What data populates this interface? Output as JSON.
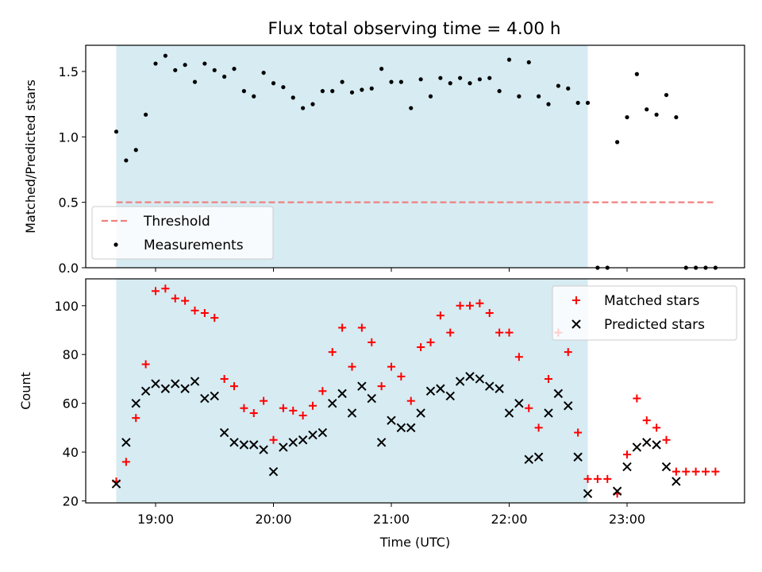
{
  "title": "Flux total observing time = 4.00 h",
  "colors": {
    "shade": "#add8e6",
    "threshold": "#f08080",
    "matched": "#ff0000",
    "predicted": "#000000"
  },
  "chart_data": [
    {
      "type": "scatter",
      "ylabel": "Matched/Predicted stars",
      "ylim": [
        0,
        1.7
      ],
      "yticks": [
        "0.0",
        "0.5",
        "1.0",
        "1.5"
      ],
      "grid": false,
      "legend": "lower-left",
      "shaded_interval": [
        "18:40",
        "22:40"
      ],
      "threshold": {
        "name": "Threshold",
        "value": 0.5,
        "x_range": [
          "18:40",
          "23:45"
        ]
      },
      "series": [
        {
          "name": "Measurements",
          "x": [
            "18:40",
            "18:45",
            "18:50",
            "18:55",
            "19:00",
            "19:05",
            "19:10",
            "19:15",
            "19:20",
            "19:25",
            "19:30",
            "19:35",
            "19:40",
            "19:45",
            "19:50",
            "19:55",
            "20:00",
            "20:05",
            "20:10",
            "20:15",
            "20:20",
            "20:25",
            "20:30",
            "20:35",
            "20:40",
            "20:45",
            "20:50",
            "20:55",
            "21:00",
            "21:05",
            "21:10",
            "21:15",
            "21:20",
            "21:25",
            "21:30",
            "21:35",
            "21:40",
            "21:45",
            "21:50",
            "21:55",
            "22:00",
            "22:05",
            "22:10",
            "22:15",
            "22:20",
            "22:25",
            "22:30",
            "22:35",
            "22:40",
            "22:45",
            "22:50",
            "22:55",
            "23:00",
            "23:05",
            "23:10",
            "23:15",
            "23:20",
            "23:25",
            "23:30",
            "23:35",
            "23:40",
            "23:45"
          ],
          "y": [
            1.04,
            0.82,
            0.9,
            1.17,
            1.56,
            1.62,
            1.51,
            1.55,
            1.42,
            1.56,
            1.51,
            1.46,
            1.52,
            1.35,
            1.31,
            1.49,
            1.41,
            1.38,
            1.3,
            1.22,
            1.25,
            1.35,
            1.35,
            1.42,
            1.34,
            1.36,
            1.37,
            1.52,
            1.42,
            1.42,
            1.22,
            1.44,
            1.31,
            1.45,
            1.41,
            1.45,
            1.41,
            1.44,
            1.45,
            1.35,
            1.59,
            1.31,
            1.57,
            1.31,
            1.25,
            1.39,
            1.37,
            1.26,
            1.26,
            0,
            0,
            0.96,
            1.15,
            1.48,
            1.21,
            1.17,
            1.32,
            1.15,
            0,
            0,
            0,
            0
          ]
        }
      ]
    },
    {
      "type": "scatter",
      "xlabel": "Time (UTC)",
      "ylabel": "Count",
      "ylim": [
        19.2,
        111
      ],
      "yticks": [
        "20",
        "40",
        "60",
        "80",
        "100"
      ],
      "xticks": [
        "19:00",
        "20:00",
        "21:00",
        "22:00",
        "23:00"
      ],
      "grid": false,
      "legend": "upper-right",
      "shaded_interval": [
        "18:40",
        "22:40"
      ],
      "series": [
        {
          "name": "Matched stars",
          "x": [
            "18:40",
            "18:45",
            "18:50",
            "18:55",
            "19:00",
            "19:05",
            "19:10",
            "19:15",
            "19:20",
            "19:25",
            "19:30",
            "19:35",
            "19:40",
            "19:45",
            "19:50",
            "19:55",
            "20:00",
            "20:05",
            "20:10",
            "20:15",
            "20:20",
            "20:25",
            "20:30",
            "20:35",
            "20:40",
            "20:45",
            "20:50",
            "20:55",
            "21:00",
            "21:05",
            "21:10",
            "21:15",
            "21:20",
            "21:25",
            "21:30",
            "21:35",
            "21:40",
            "21:45",
            "21:50",
            "21:55",
            "22:00",
            "22:05",
            "22:10",
            "22:15",
            "22:20",
            "22:25",
            "22:30",
            "22:35",
            "22:40",
            "22:45",
            "22:50",
            "22:55",
            "23:00",
            "23:05",
            "23:10",
            "23:15",
            "23:20",
            "23:25",
            "23:30",
            "23:35",
            "23:40",
            "23:45"
          ],
          "y": [
            28,
            36,
            54,
            76,
            106,
            107,
            103,
            102,
            98,
            97,
            95,
            70,
            67,
            58,
            56,
            61,
            45,
            58,
            57,
            55,
            59,
            65,
            81,
            91,
            75,
            91,
            85,
            67,
            75,
            71,
            61,
            83,
            85,
            96,
            89,
            100,
            100,
            101,
            97,
            89,
            89,
            79,
            58,
            50,
            70,
            89,
            81,
            48,
            29,
            29,
            29,
            23,
            39,
            62,
            53,
            50,
            45,
            32,
            32,
            32,
            32,
            32
          ]
        },
        {
          "name": "Predicted stars",
          "x": [
            "18:40",
            "18:45",
            "18:50",
            "18:55",
            "19:00",
            "19:05",
            "19:10",
            "19:15",
            "19:20",
            "19:25",
            "19:30",
            "19:35",
            "19:40",
            "19:45",
            "19:50",
            "19:55",
            "20:00",
            "20:05",
            "20:10",
            "20:15",
            "20:20",
            "20:25",
            "20:30",
            "20:35",
            "20:40",
            "20:45",
            "20:50",
            "20:55",
            "21:00",
            "21:05",
            "21:10",
            "21:15",
            "21:20",
            "21:25",
            "21:30",
            "21:35",
            "21:40",
            "21:45",
            "21:50",
            "21:55",
            "22:00",
            "22:05",
            "22:10",
            "22:15",
            "22:20",
            "22:25",
            "22:30",
            "22:35",
            "22:40",
            "22:55",
            "23:00",
            "23:05",
            "23:10",
            "23:15",
            "23:20",
            "23:25"
          ],
          "y": [
            27,
            44,
            60,
            65,
            68,
            66,
            68,
            66,
            69,
            62,
            63,
            48,
            44,
            43,
            43,
            41,
            32,
            42,
            44,
            45,
            47,
            48,
            60,
            64,
            56,
            67,
            62,
            44,
            53,
            50,
            50,
            56,
            65,
            66,
            63,
            69,
            71,
            70,
            67,
            66,
            56,
            60,
            37,
            38,
            56,
            64,
            59,
            38,
            23,
            24,
            34,
            42,
            44,
            43,
            34,
            28
          ]
        }
      ]
    }
  ]
}
